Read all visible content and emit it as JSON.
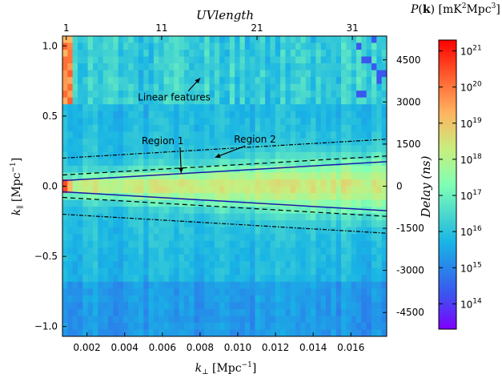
{
  "chart_data": {
    "type": "heatmap",
    "title": "",
    "xlabel": "k⊥ [Mpc⁻¹]",
    "ylabel": "k∥ [Mpc⁻¹]",
    "top_axis_label": "UVlength",
    "right_axis_label": "Delay (ns)",
    "colorbar_label": "P(k) [mK²Mpc³]",
    "xlim": [
      0.0007,
      0.0179
    ],
    "ylim": [
      -1.07,
      1.07
    ],
    "x_ticks": [
      {
        "value": 0.002,
        "label": "0.002"
      },
      {
        "value": 0.004,
        "label": "0.004"
      },
      {
        "value": 0.006,
        "label": "0.006"
      },
      {
        "value": 0.008,
        "label": "0.008"
      },
      {
        "value": 0.01,
        "label": "0.010"
      },
      {
        "value": 0.012,
        "label": "0.012"
      },
      {
        "value": 0.014,
        "label": "0.014"
      },
      {
        "value": 0.016,
        "label": "0.016"
      }
    ],
    "y_ticks": [
      {
        "value": 1.0,
        "label": "1.0"
      },
      {
        "value": 0.5,
        "label": "0.5"
      },
      {
        "value": 0.0,
        "label": "0.0"
      },
      {
        "value": -0.5,
        "label": "−0.5"
      },
      {
        "value": -1.0,
        "label": "−1.0"
      }
    ],
    "top_ticks": [
      {
        "value": 1,
        "label": "1"
      },
      {
        "value": 11,
        "label": "11"
      },
      {
        "value": 21,
        "label": "21"
      },
      {
        "value": 31,
        "label": "31"
      }
    ],
    "top_axis_range": [
      0.6,
      34.6
    ],
    "right_ticks": [
      {
        "value": 4500,
        "label": "4500"
      },
      {
        "value": 3000,
        "label": "3000"
      },
      {
        "value": 1500,
        "label": "1500"
      },
      {
        "value": 0,
        "label": "0"
      },
      {
        "value": -1500,
        "label": "-1500"
      },
      {
        "value": -3000,
        "label": "-3000"
      },
      {
        "value": -4500,
        "label": "-4500"
      }
    ],
    "right_axis_range": [
      -5350,
      5350
    ],
    "colorbar": {
      "scale": "log",
      "range": [
        13.3,
        21.3
      ],
      "ticks": [
        {
          "exp": 14,
          "label": "10",
          "sup": "14"
        },
        {
          "exp": 15,
          "label": "10",
          "sup": "15"
        },
        {
          "exp": 16,
          "label": "10",
          "sup": "16"
        },
        {
          "exp": 17,
          "label": "10",
          "sup": "17"
        },
        {
          "exp": 18,
          "label": "10",
          "sup": "18"
        },
        {
          "exp": 19,
          "label": "10",
          "sup": "19"
        },
        {
          "exp": 20,
          "label": "10",
          "sup": "20"
        },
        {
          "exp": 21,
          "label": "10",
          "sup": "21"
        }
      ]
    },
    "lines": [
      {
        "name": "Region 1",
        "style": "solid",
        "color": "#1a1aaa",
        "x": [
          0.0007,
          0.0179
        ],
        "y": [
          0.04,
          0.175
        ]
      },
      {
        "name": "Region 1",
        "style": "solid",
        "color": "#1a1aaa",
        "x": [
          0.0007,
          0.0179
        ],
        "y": [
          -0.04,
          -0.175
        ]
      },
      {
        "name": "Region 2",
        "style": "dashed",
        "color": "#000000",
        "x": [
          0.0007,
          0.0179
        ],
        "y": [
          0.08,
          0.215
        ]
      },
      {
        "name": "Region 2",
        "style": "dashed",
        "color": "#000000",
        "x": [
          0.0007,
          0.0179
        ],
        "y": [
          -0.08,
          -0.215
        ]
      },
      {
        "name": "",
        "style": "dotted",
        "color": "#000000",
        "x": [
          0.0007,
          0.0179
        ],
        "y": [
          0.2,
          0.335
        ]
      },
      {
        "name": "",
        "style": "dotted",
        "color": "#000000",
        "x": [
          0.0007,
          0.0179
        ],
        "y": [
          -0.2,
          -0.335
        ]
      }
    ],
    "annotations": [
      {
        "text": "Linear features",
        "x": 0.0047,
        "y": 0.61,
        "arrow_to": [
          0.008,
          0.77
        ]
      },
      {
        "text": "Region 1",
        "x": 0.0049,
        "y": 0.3,
        "arrow_to": [
          0.007,
          0.095
        ]
      },
      {
        "text": "Region 2",
        "x": 0.0098,
        "y": 0.31,
        "arrow_to": [
          0.0088,
          0.205
        ]
      }
    ],
    "features": {
      "linear_feature_band": [
        0.6,
        1.07
      ],
      "foreground_wedge_peak": {
        "x": 0.0008,
        "y": 0.0,
        "log_power": 20.5
      },
      "background_log_power": 15.6
    },
    "grid": false
  }
}
